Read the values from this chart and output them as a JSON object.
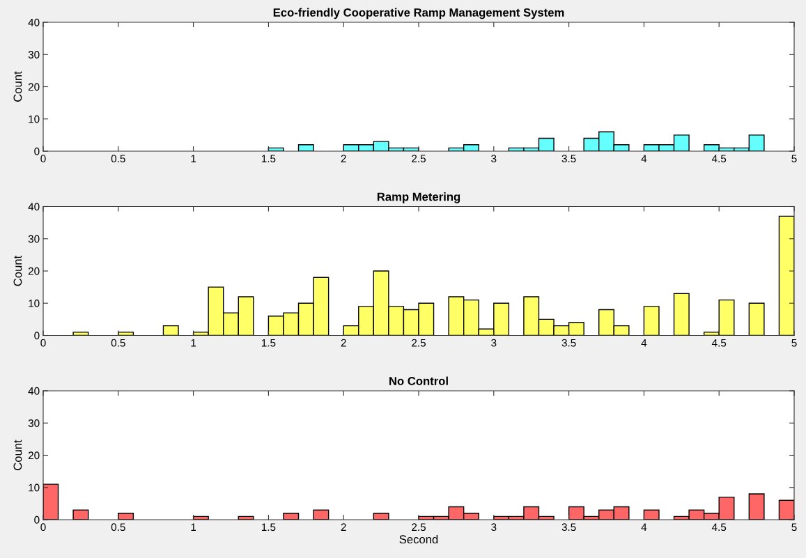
{
  "chart_data": [
    {
      "type": "histogram",
      "title": "Eco-friendly Cooperative Ramp Management System",
      "ylabel": "Count",
      "color": "#66ffff",
      "bins": [
        0,
        0.1,
        0.2,
        0.3,
        0.4,
        0.5,
        0.6,
        0.7,
        0.8,
        0.9,
        1,
        1.1,
        1.2,
        1.3,
        1.4,
        1.5,
        1.6,
        1.7,
        1.8,
        1.9,
        2,
        2.1,
        2.2,
        2.3,
        2.4,
        2.5,
        2.6,
        2.7,
        2.8,
        2.9,
        3,
        3.1,
        3.2,
        3.3,
        3.4,
        3.5,
        3.6,
        3.7,
        3.8,
        3.9,
        4,
        4.1,
        4.2,
        4.3,
        4.4,
        4.5,
        4.6,
        4.7,
        4.8,
        4.9,
        5
      ],
      "values": [
        0,
        0,
        0,
        0,
        0,
        0,
        0,
        0,
        0,
        0,
        0,
        0,
        0,
        0,
        0,
        1,
        0,
        2,
        0,
        0,
        2,
        2,
        3,
        1,
        1,
        0,
        0,
        1,
        2,
        0,
        0,
        1,
        1,
        4,
        0,
        0,
        4,
        6,
        2,
        0,
        2,
        2,
        5,
        0,
        2,
        1,
        1,
        5,
        0,
        0
      ],
      "xlim": [
        0,
        5
      ],
      "xticks": [
        0,
        0.5,
        1,
        1.5,
        2,
        2.5,
        3,
        3.5,
        4,
        4.5,
        5
      ],
      "ylim": [
        0,
        40
      ],
      "yticks": [
        0,
        10,
        20,
        30,
        40
      ],
      "grid": false
    },
    {
      "type": "histogram",
      "title": "Ramp Metering",
      "ylabel": "Count",
      "color": "#ffff66",
      "bins": [
        0,
        0.1,
        0.2,
        0.3,
        0.4,
        0.5,
        0.6,
        0.7,
        0.8,
        0.9,
        1,
        1.1,
        1.2,
        1.3,
        1.4,
        1.5,
        1.6,
        1.7,
        1.8,
        1.9,
        2,
        2.1,
        2.2,
        2.3,
        2.4,
        2.5,
        2.6,
        2.7,
        2.8,
        2.9,
        3,
        3.1,
        3.2,
        3.3,
        3.4,
        3.5,
        3.6,
        3.7,
        3.8,
        3.9,
        4,
        4.1,
        4.2,
        4.3,
        4.4,
        4.5,
        4.6,
        4.7,
        4.8,
        4.9,
        5
      ],
      "values": [
        0,
        0,
        1,
        0,
        0,
        1,
        0,
        0,
        3,
        0,
        1,
        15,
        7,
        12,
        0,
        6,
        7,
        10,
        18,
        0,
        3,
        9,
        20,
        9,
        8,
        10,
        0,
        12,
        11,
        2,
        10,
        0,
        12,
        5,
        3,
        4,
        0,
        8,
        3,
        0,
        9,
        0,
        13,
        0,
        1,
        11,
        0,
        10,
        0,
        37
      ],
      "xlim": [
        0,
        5
      ],
      "xticks": [
        0,
        0.5,
        1,
        1.5,
        2,
        2.5,
        3,
        3.5,
        4,
        4.5,
        5
      ],
      "ylim": [
        0,
        40
      ],
      "yticks": [
        0,
        10,
        20,
        30,
        40
      ],
      "grid": false
    },
    {
      "type": "histogram",
      "title": "No Control",
      "xlabel": "Second",
      "ylabel": "Count",
      "color": "#ff6666",
      "bins": [
        0,
        0.1,
        0.2,
        0.3,
        0.4,
        0.5,
        0.6,
        0.7,
        0.8,
        0.9,
        1,
        1.1,
        1.2,
        1.3,
        1.4,
        1.5,
        1.6,
        1.7,
        1.8,
        1.9,
        2,
        2.1,
        2.2,
        2.3,
        2.4,
        2.5,
        2.6,
        2.7,
        2.8,
        2.9,
        3,
        3.1,
        3.2,
        3.3,
        3.4,
        3.5,
        3.6,
        3.7,
        3.8,
        3.9,
        4,
        4.1,
        4.2,
        4.3,
        4.4,
        4.5,
        4.6,
        4.7,
        4.8,
        4.9,
        5
      ],
      "values": [
        11,
        0,
        3,
        0,
        0,
        2,
        0,
        0,
        0,
        0,
        1,
        0,
        0,
        1,
        0,
        0,
        2,
        0,
        3,
        0,
        0,
        0,
        2,
        0,
        0,
        1,
        1,
        4,
        2,
        0,
        1,
        1,
        4,
        1,
        0,
        4,
        1,
        3,
        4,
        0,
        3,
        0,
        1,
        3,
        2,
        7,
        0,
        8,
        0,
        6
      ],
      "xlim": [
        0,
        5
      ],
      "xticks": [
        0,
        0.5,
        1,
        1.5,
        2,
        2.5,
        3,
        3.5,
        4,
        4.5,
        5
      ],
      "ylim": [
        0,
        40
      ],
      "yticks": [
        0,
        10,
        20,
        30,
        40
      ],
      "grid": false
    }
  ]
}
